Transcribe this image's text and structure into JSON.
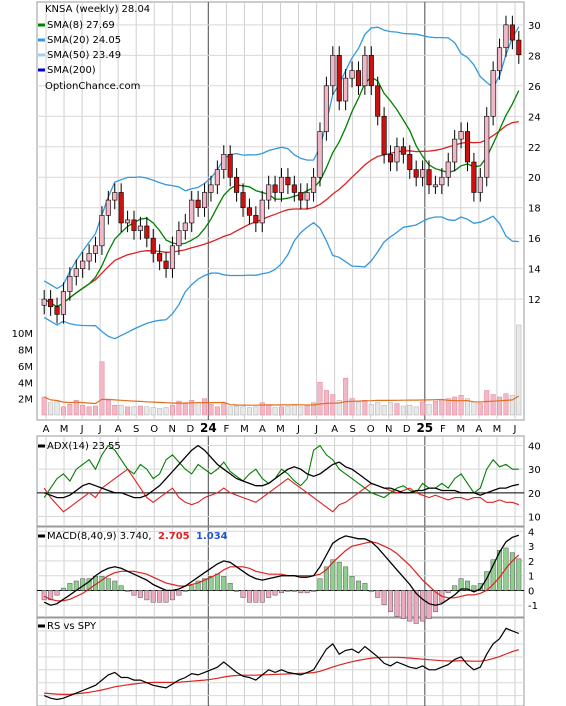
{
  "legend": {
    "title": "KNSA (weekly) 28.04",
    "site": "OptionChance.com",
    "items": [
      {
        "label": "SMA(8) 27.69",
        "color": "#008000"
      },
      {
        "label": "SMA(20) 24.05",
        "color": "#3399dd"
      },
      {
        "label": "SMA(50) 23.49",
        "color": "#9fd0f0"
      },
      {
        "label": "SMA(200)",
        "color": "#0000cc"
      }
    ]
  },
  "colors": {
    "up": "#f2b8c8",
    "down": "#cc1111",
    "neutral": "#e8e8e8",
    "sma8": "#008000",
    "sma20": "#3399dd",
    "red": "#dd2222",
    "yellow": "#eeee33",
    "orange": "#e07020"
  },
  "x_axis": {
    "months": [
      "A",
      "M",
      "J",
      "J",
      "A",
      "S",
      "O",
      "N",
      "D",
      "24",
      "F",
      "M",
      "A",
      "M",
      "J",
      "J",
      "A",
      "S",
      "O",
      "N",
      "D",
      "25",
      "F",
      "M",
      "A",
      "M",
      "J"
    ],
    "bold_labels": [
      "24",
      "25"
    ]
  },
  "chart_data": [
    {
      "type": "candlestick",
      "panel": "price",
      "ylim": [
        10.5,
        31.5
      ],
      "yticks": [
        12,
        14,
        16,
        18,
        20,
        22,
        24,
        26,
        28,
        30
      ],
      "closes": [
        12.0,
        11.5,
        11.0,
        12.5,
        13.5,
        14.0,
        14.5,
        15.0,
        15.5,
        17.5,
        18.5,
        19.0,
        17.0,
        17.2,
        16.5,
        16.8,
        16.0,
        15.0,
        14.5,
        14.0,
        15.5,
        16.5,
        17.0,
        18.5,
        18.0,
        19.0,
        19.5,
        20.5,
        21.5,
        20.0,
        19.0,
        18.0,
        17.5,
        17.0,
        18.5,
        19.5,
        19.0,
        20.0,
        19.5,
        19.0,
        18.5,
        19.0,
        20.0,
        23.0,
        26.0,
        28.0,
        25.0,
        26.5,
        27.0,
        26.0,
        28.0,
        26.0,
        24.0,
        21.5,
        21.0,
        22.0,
        21.5,
        20.5,
        20.0,
        20.5,
        19.5,
        19.5,
        20.0,
        21.0,
        22.5,
        23.0,
        21.0,
        19.0,
        20.0,
        24.0,
        27.0,
        28.5,
        30.0,
        29.0,
        28.04
      ],
      "sma8_last": 27.69,
      "sma20_last": 24.05,
      "sma50_last": 23.49
    },
    {
      "type": "bar",
      "panel": "volume",
      "yticks": [
        "2M",
        "4M",
        "6M",
        "8M",
        "10M"
      ],
      "ylim": [
        0,
        11
      ],
      "values": [
        2.2,
        1.5,
        1.6,
        1.0,
        1.3,
        1.8,
        1.2,
        1.0,
        1.1,
        6.5,
        1.8,
        1.2,
        1.2,
        1.0,
        1.0,
        1.1,
        1.0,
        0.9,
        0.8,
        0.9,
        1.2,
        1.7,
        1.4,
        1.8,
        1.5,
        2.0,
        1.3,
        1.0,
        1.4,
        1.0,
        1.1,
        1.0,
        0.9,
        1.0,
        1.5,
        1.2,
        0.9,
        1.0,
        1.1,
        1.2,
        1.0,
        1.2,
        1.5,
        4.0,
        3.0,
        2.5,
        1.8,
        4.5,
        2.0,
        1.6,
        1.8,
        1.3,
        1.5,
        1.2,
        1.5,
        1.4,
        1.1,
        1.2,
        1.0,
        1.6,
        1.3,
        1.7,
        1.9,
        2.0,
        2.2,
        2.4,
        2.0,
        1.6,
        1.4,
        3.0,
        2.5,
        2.2,
        2.6,
        2.4,
        11.0
      ]
    },
    {
      "type": "line",
      "panel": "adx",
      "title": "ADX(14) 23.55",
      "ylim": [
        6,
        44
      ],
      "yticks": [
        10,
        20,
        30,
        40
      ],
      "adx": [
        20,
        19,
        18,
        18,
        19,
        21,
        23,
        24,
        23,
        22,
        21,
        20,
        20,
        19,
        18,
        18,
        19,
        21,
        23,
        26,
        29,
        32,
        35,
        38,
        40,
        38,
        35,
        32,
        30,
        28,
        26,
        25,
        24,
        23,
        23,
        24,
        26,
        28,
        30,
        31,
        30,
        28,
        27,
        28,
        30,
        32,
        33,
        31,
        30,
        28,
        26,
        24,
        23,
        22,
        22,
        21,
        20,
        20,
        21,
        21,
        22,
        22,
        21,
        21,
        21,
        20,
        20,
        20,
        19,
        20,
        21,
        22,
        22,
        23,
        23.55
      ],
      "di_plus": [
        18,
        22,
        26,
        28,
        25,
        30,
        32,
        34,
        30,
        36,
        40,
        38,
        34,
        30,
        28,
        32,
        30,
        26,
        28,
        34,
        36,
        33,
        30,
        28,
        32,
        30,
        28,
        30,
        33,
        29,
        27,
        25,
        28,
        30,
        26,
        24,
        26,
        30,
        28,
        25,
        23,
        26,
        38,
        40,
        36,
        34,
        30,
        28,
        26,
        24,
        22,
        20,
        19,
        18,
        20,
        22,
        23,
        21,
        20,
        24,
        22,
        22,
        24,
        22,
        26,
        28,
        24,
        20,
        22,
        30,
        34,
        31,
        32,
        30,
        30
      ],
      "di_minus": [
        22,
        18,
        15,
        12,
        14,
        16,
        18,
        20,
        18,
        22,
        24,
        26,
        28,
        30,
        26,
        22,
        18,
        16,
        18,
        20,
        22,
        18,
        16,
        15,
        16,
        18,
        19,
        20,
        22,
        20,
        19,
        18,
        17,
        16,
        18,
        20,
        22,
        24,
        26,
        24,
        22,
        20,
        18,
        16,
        14,
        12,
        15,
        16,
        18,
        20,
        22,
        24,
        23,
        22,
        21,
        20,
        21,
        22,
        20,
        19,
        18,
        19,
        18,
        17,
        18,
        18,
        17,
        18,
        18,
        16,
        16,
        17,
        16,
        16,
        15
      ]
    },
    {
      "type": "line",
      "panel": "macd",
      "title": "MACD(8,40,9) 3.740,",
      "macd_label": "2.705",
      "signal_label": "1.034",
      "ylim": [
        -1.8,
        4.3
      ],
      "yticks": [
        -1,
        0,
        1,
        2,
        3,
        4
      ],
      "macd": [
        -0.8,
        -1.0,
        -0.9,
        -0.6,
        -0.3,
        0.0,
        0.3,
        0.6,
        1.0,
        1.3,
        1.5,
        1.6,
        1.5,
        1.3,
        1.1,
        0.9,
        0.7,
        0.4,
        0.2,
        0.0,
        0.0,
        0.1,
        0.3,
        0.6,
        0.9,
        1.2,
        1.5,
        1.8,
        2.0,
        1.9,
        1.6,
        1.3,
        1.0,
        0.8,
        0.7,
        0.8,
        0.9,
        1.0,
        1.0,
        1.0,
        0.9,
        0.9,
        1.0,
        1.6,
        2.4,
        3.2,
        3.5,
        3.7,
        3.6,
        3.5,
        3.5,
        3.3,
        2.9,
        2.4,
        1.9,
        1.4,
        0.9,
        0.4,
        -0.2,
        -0.6,
        -0.9,
        -1.0,
        -0.9,
        -0.6,
        -0.3,
        0.1,
        0.1,
        -0.1,
        0.1,
        0.8,
        1.7,
        2.6,
        3.3,
        3.6,
        3.74
      ],
      "signal": [
        -0.4,
        -0.6,
        -0.7,
        -0.7,
        -0.6,
        -0.4,
        -0.2,
        0.1,
        0.4,
        0.7,
        1.0,
        1.2,
        1.3,
        1.3,
        1.3,
        1.2,
        1.1,
        0.9,
        0.7,
        0.5,
        0.4,
        0.3,
        0.3,
        0.4,
        0.5,
        0.7,
        0.9,
        1.1,
        1.4,
        1.6,
        1.6,
        1.6,
        1.5,
        1.3,
        1.2,
        1.1,
        1.1,
        1.1,
        1.0,
        1.0,
        1.0,
        1.0,
        1.0,
        1.1,
        1.4,
        1.9,
        2.3,
        2.7,
        3.0,
        3.1,
        3.2,
        3.3,
        3.2,
        3.0,
        2.8,
        2.5,
        2.1,
        1.7,
        1.2,
        0.7,
        0.3,
        -0.1,
        -0.4,
        -0.5,
        -0.5,
        -0.4,
        -0.3,
        -0.3,
        -0.2,
        0.0,
        0.4,
        0.9,
        1.5,
        2.0,
        2.4
      ]
    },
    {
      "type": "line",
      "panel": "rs",
      "title": "RS vs SPY",
      "rs": [
        10,
        9,
        8.5,
        9,
        10,
        11,
        12,
        13,
        14,
        16,
        18,
        19,
        17,
        17,
        16,
        16,
        15,
        14,
        13.5,
        13,
        14.5,
        16,
        17,
        18.5,
        18,
        19,
        20,
        21,
        23,
        21,
        19,
        17.5,
        17,
        16,
        18,
        20,
        19,
        20,
        19,
        18.5,
        18,
        19,
        20,
        24,
        28,
        30,
        26,
        27.5,
        28,
        26.5,
        29,
        27,
        25,
        22.5,
        21.5,
        23,
        22,
        21,
        20.5,
        21.5,
        20,
        20,
        21,
        22,
        24,
        25,
        22,
        20,
        21,
        26,
        30,
        32,
        36,
        35,
        34
      ],
      "rs_ma": [
        11,
        10.8,
        10.6,
        10.5,
        10.5,
        10.7,
        11,
        11.3,
        11.7,
        12.2,
        12.8,
        13.4,
        13.8,
        14.2,
        14.5,
        14.8,
        15,
        15.1,
        15.1,
        15.1,
        15.1,
        15.2,
        15.4,
        15.6,
        15.8,
        16,
        16.3,
        16.7,
        17.2,
        17.6,
        17.8,
        17.9,
        17.9,
        17.9,
        18,
        18.1,
        18.2,
        18.3,
        18.4,
        18.5,
        18.6,
        18.7,
        18.9,
        19.4,
        20.2,
        21.1,
        21.8,
        22.5,
        23.1,
        23.6,
        24.1,
        24.5,
        24.7,
        24.8,
        24.8,
        24.8,
        24.7,
        24.5,
        24.3,
        24.1,
        23.9,
        23.7,
        23.5,
        23.4,
        23.4,
        23.5,
        23.4,
        23.3,
        23.3,
        23.7,
        24.3,
        25.1,
        26.1,
        27,
        27.8
      ]
    }
  ]
}
